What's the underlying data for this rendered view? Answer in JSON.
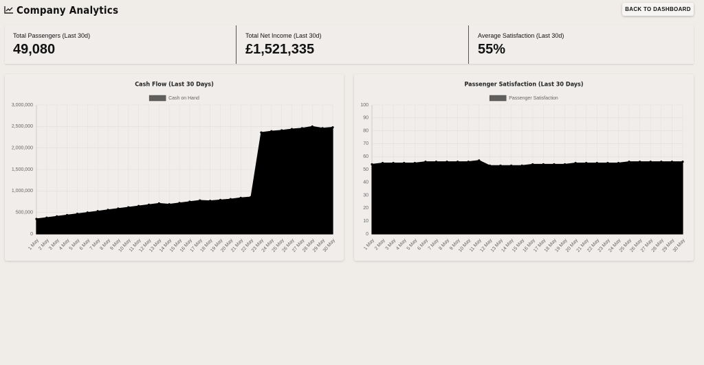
{
  "header": {
    "title": "Company Analytics",
    "button": "BACK TO DASHBOARD"
  },
  "stats": [
    {
      "label": "Total Passengers (Last 30d)",
      "value": "49,080"
    },
    {
      "label": "Total Net Income (Last 30d)",
      "value": "£1,521,335"
    },
    {
      "label": "Average Satisfaction (Last 30d)",
      "value": "55%"
    }
  ],
  "chart_data": [
    {
      "type": "area",
      "title": "Cash Flow (Last 30 Days)",
      "categories": [
        "1 May",
        "2 May",
        "3 May",
        "4 May",
        "5 May",
        "6 May",
        "7 May",
        "8 May",
        "9 May",
        "10 May",
        "11 May",
        "12 May",
        "13 May",
        "14 May",
        "15 May",
        "16 May",
        "17 May",
        "18 May",
        "19 May",
        "20 May",
        "21 May",
        "22 May",
        "23 May",
        "24 May",
        "25 May",
        "26 May",
        "27 May",
        "28 May",
        "29 May",
        "30 May"
      ],
      "series": [
        {
          "name": "Cash on Hand",
          "color": "#000000",
          "values": [
            350000,
            380000,
            410000,
            440000,
            470000,
            500000,
            530000,
            560000,
            590000,
            620000,
            650000,
            680000,
            710000,
            690000,
            720000,
            750000,
            780000,
            770000,
            790000,
            810000,
            840000,
            860000,
            2360000,
            2390000,
            2410000,
            2440000,
            2460000,
            2500000,
            2460000,
            2480000
          ]
        }
      ],
      "ylim": [
        0,
        3000000
      ],
      "yticks": [
        0,
        {
          "value": 500000,
          "label": "500,000"
        },
        {
          "value": 1000000,
          "label": "1,000,000"
        },
        {
          "value": 1500000,
          "label": "1,500,000"
        },
        {
          "value": 2000000,
          "label": "2,000,000"
        },
        {
          "value": 2500000,
          "label": "2,500,000"
        },
        {
          "value": 3000000,
          "label": "3,000,000"
        }
      ],
      "grid": true,
      "legend": "top"
    },
    {
      "type": "area",
      "title": "Passenger Satisfaction (Last 30 Days)",
      "categories": [
        "1 May",
        "2 May",
        "3 May",
        "4 May",
        "5 May",
        "6 May",
        "7 May",
        "8 May",
        "9 May",
        "10 May",
        "11 May",
        "12 May",
        "13 May",
        "14 May",
        "15 May",
        "16 May",
        "17 May",
        "18 May",
        "19 May",
        "20 May",
        "21 May",
        "22 May",
        "23 May",
        "24 May",
        "25 May",
        "26 May",
        "27 May",
        "28 May",
        "29 May",
        "30 May"
      ],
      "series": [
        {
          "name": "Passenger Satisfaction",
          "color": "#000000",
          "values": [
            54,
            55,
            55,
            55,
            55,
            56,
            56,
            56,
            56,
            56,
            57,
            53,
            53,
            53,
            53,
            54,
            54,
            54,
            54,
            55,
            55,
            55,
            55,
            55,
            56,
            56,
            56,
            56,
            56,
            56
          ]
        }
      ],
      "ylim": [
        0,
        100
      ],
      "yticks": [
        0,
        10,
        20,
        30,
        40,
        50,
        60,
        70,
        80,
        90,
        100
      ],
      "grid": true,
      "legend": "top"
    }
  ]
}
